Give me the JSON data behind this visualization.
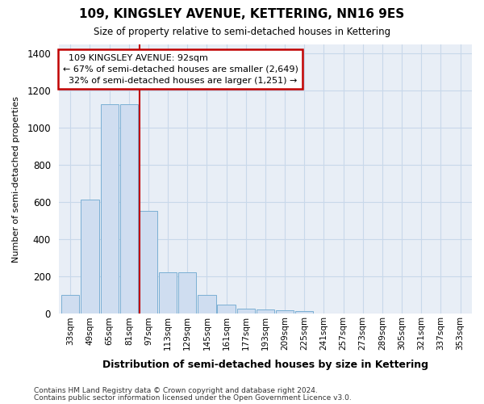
{
  "title": "109, KINGSLEY AVENUE, KETTERING, NN16 9ES",
  "subtitle": "Size of property relative to semi-detached houses in Kettering",
  "xlabel": "Distribution of semi-detached houses by size in Kettering",
  "ylabel": "Number of semi-detached properties",
  "footnote1": "Contains HM Land Registry data © Crown copyright and database right 2024.",
  "footnote2": "Contains public sector information licensed under the Open Government Licence v3.0.",
  "property_label": "109 KINGSLEY AVENUE: 92sqm",
  "pct_smaller": 67,
  "n_smaller": 2649,
  "pct_larger": 32,
  "n_larger": 1251,
  "bar_color": "#cfddf0",
  "bar_edge_color": "#7bafd4",
  "highlight_color": "#c00000",
  "annotation_box_color": "#c00000",
  "grid_color": "#c8d8ea",
  "bg_color": "#e8eef6",
  "categories": [
    "33sqm",
    "49sqm",
    "65sqm",
    "81sqm",
    "97sqm",
    "113sqm",
    "129sqm",
    "145sqm",
    "161sqm",
    "177sqm",
    "193sqm",
    "209sqm",
    "225sqm",
    "241sqm",
    "257sqm",
    "273sqm",
    "289sqm",
    "305sqm",
    "321sqm",
    "337sqm",
    "353sqm"
  ],
  "values": [
    100,
    615,
    1130,
    1130,
    555,
    225,
    225,
    100,
    50,
    30,
    25,
    20,
    15,
    0,
    0,
    0,
    0,
    0,
    0,
    0,
    0
  ],
  "ylim": [
    0,
    1450
  ],
  "red_line_x": 4
}
